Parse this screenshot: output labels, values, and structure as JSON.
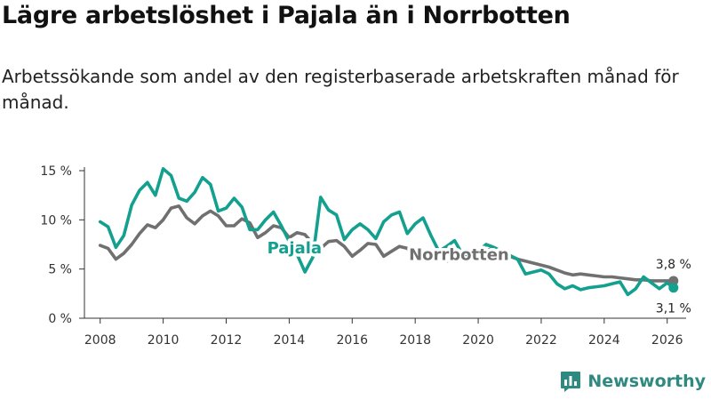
{
  "header": {
    "title": "Lägre arbetslöshet i Pajala än i Norrbotten",
    "subtitle": "Arbetssökande som andel av den registerbaserade arbetskraften månad för månad."
  },
  "brand": {
    "name": "Newsworthy",
    "color": "#2e8a80"
  },
  "chart_data": {
    "type": "line",
    "title": "Lägre arbetslöshet i Pajala än i Norrbotten",
    "subtitle": "Arbetssökande som andel av den registerbaserade arbetskraften månad för månad.",
    "xlabel": "",
    "ylabel": "",
    "xlim": [
      2007.5,
      2026.6
    ],
    "ylim": [
      0,
      15
    ],
    "x_ticks": [
      2008,
      2010,
      2012,
      2014,
      2016,
      2018,
      2020,
      2022,
      2024,
      2026
    ],
    "x_tick_labels": [
      "2008",
      "2010",
      "2012",
      "2014",
      "2016",
      "2018",
      "2020",
      "2022",
      "2024",
      "2026"
    ],
    "y_ticks": [
      0,
      5,
      10,
      15
    ],
    "y_tick_labels": [
      "0 %",
      "5 %",
      "10 %",
      "15 %"
    ],
    "grid": false,
    "series": [
      {
        "name": "Norrbotten",
        "color": "#707070",
        "label": "Norrbotten",
        "end_label": "3,8 %",
        "points": [
          [
            2008.0,
            7.4
          ],
          [
            2008.25,
            7.1
          ],
          [
            2008.5,
            6.0
          ],
          [
            2008.75,
            6.6
          ],
          [
            2009.0,
            7.5
          ],
          [
            2009.25,
            8.6
          ],
          [
            2009.5,
            9.5
          ],
          [
            2009.75,
            9.2
          ],
          [
            2010.0,
            10.0
          ],
          [
            2010.25,
            11.2
          ],
          [
            2010.5,
            11.4
          ],
          [
            2010.75,
            10.2
          ],
          [
            2011.0,
            9.6
          ],
          [
            2011.25,
            10.4
          ],
          [
            2011.5,
            10.9
          ],
          [
            2011.75,
            10.4
          ],
          [
            2012.0,
            9.4
          ],
          [
            2012.25,
            9.4
          ],
          [
            2012.5,
            10.1
          ],
          [
            2012.75,
            9.7
          ],
          [
            2013.0,
            8.2
          ],
          [
            2013.25,
            8.7
          ],
          [
            2013.5,
            9.4
          ],
          [
            2013.75,
            9.2
          ],
          [
            2014.0,
            8.2
          ],
          [
            2014.25,
            8.7
          ],
          [
            2014.5,
            8.5
          ],
          [
            2014.75,
            7.6
          ],
          [
            2015.0,
            7.1
          ],
          [
            2015.25,
            7.8
          ],
          [
            2015.5,
            7.9
          ],
          [
            2015.75,
            7.3
          ],
          [
            2016.0,
            6.3
          ],
          [
            2016.25,
            6.9
          ],
          [
            2016.5,
            7.6
          ],
          [
            2016.75,
            7.5
          ],
          [
            2017.0,
            6.3
          ],
          [
            2017.25,
            6.8
          ],
          [
            2017.5,
            7.3
          ],
          [
            2017.75,
            7.1
          ],
          [
            2018.0,
            6.1
          ],
          [
            2018.25,
            6.5
          ],
          [
            2018.5,
            6.9
          ],
          [
            2018.75,
            6.7
          ],
          [
            2019.0,
            5.8
          ],
          [
            2019.25,
            6.1
          ],
          [
            2019.5,
            6.4
          ],
          [
            2019.75,
            6.2
          ],
          [
            2020.0,
            6.4
          ],
          [
            2020.25,
            6.9
          ],
          [
            2020.5,
            7.1
          ],
          [
            2020.75,
            6.8
          ],
          [
            2021.0,
            6.3
          ],
          [
            2021.25,
            6.0
          ],
          [
            2021.5,
            5.8
          ],
          [
            2021.75,
            5.6
          ],
          [
            2022.0,
            5.4
          ],
          [
            2022.25,
            5.2
          ],
          [
            2022.5,
            4.9
          ],
          [
            2022.75,
            4.6
          ],
          [
            2023.0,
            4.4
          ],
          [
            2023.25,
            4.5
          ],
          [
            2023.5,
            4.4
          ],
          [
            2023.75,
            4.3
          ],
          [
            2024.0,
            4.2
          ],
          [
            2024.25,
            4.2
          ],
          [
            2024.5,
            4.1
          ],
          [
            2024.75,
            4.0
          ],
          [
            2025.0,
            3.9
          ],
          [
            2025.25,
            3.9
          ],
          [
            2025.5,
            3.8
          ],
          [
            2025.75,
            3.8
          ],
          [
            2026.0,
            3.8
          ],
          [
            2026.2,
            3.8
          ]
        ]
      },
      {
        "name": "Pajala",
        "color": "#13a08f",
        "label": "Pajala",
        "end_label": "3,1 %",
        "points": [
          [
            2008.0,
            9.8
          ],
          [
            2008.25,
            9.3
          ],
          [
            2008.5,
            7.2
          ],
          [
            2008.75,
            8.4
          ],
          [
            2009.0,
            11.5
          ],
          [
            2009.25,
            13.0
          ],
          [
            2009.5,
            13.8
          ],
          [
            2009.75,
            12.5
          ],
          [
            2010.0,
            15.2
          ],
          [
            2010.25,
            14.5
          ],
          [
            2010.5,
            12.2
          ],
          [
            2010.75,
            11.9
          ],
          [
            2011.0,
            12.8
          ],
          [
            2011.25,
            14.3
          ],
          [
            2011.5,
            13.6
          ],
          [
            2011.75,
            10.9
          ],
          [
            2012.0,
            11.2
          ],
          [
            2012.25,
            12.2
          ],
          [
            2012.5,
            11.3
          ],
          [
            2012.75,
            9.0
          ],
          [
            2013.0,
            9.0
          ],
          [
            2013.25,
            10.0
          ],
          [
            2013.5,
            10.8
          ],
          [
            2013.75,
            9.4
          ],
          [
            2014.0,
            7.8
          ],
          [
            2014.25,
            6.5
          ],
          [
            2014.5,
            4.7
          ],
          [
            2014.75,
            6.2
          ],
          [
            2015.0,
            12.3
          ],
          [
            2015.25,
            11.0
          ],
          [
            2015.5,
            10.5
          ],
          [
            2015.75,
            8.0
          ],
          [
            2016.0,
            9.0
          ],
          [
            2016.25,
            9.6
          ],
          [
            2016.5,
            9.0
          ],
          [
            2016.75,
            8.1
          ],
          [
            2017.0,
            9.8
          ],
          [
            2017.25,
            10.5
          ],
          [
            2017.5,
            10.8
          ],
          [
            2017.75,
            8.6
          ],
          [
            2018.0,
            9.6
          ],
          [
            2018.25,
            10.2
          ],
          [
            2018.5,
            8.4
          ],
          [
            2018.75,
            6.8
          ],
          [
            2019.0,
            7.3
          ],
          [
            2019.25,
            7.9
          ],
          [
            2019.5,
            6.5
          ],
          [
            2019.75,
            6.2
          ],
          [
            2020.0,
            6.8
          ],
          [
            2020.25,
            7.5
          ],
          [
            2020.5,
            7.2
          ],
          [
            2020.75,
            6.8
          ],
          [
            2021.0,
            6.4
          ],
          [
            2021.25,
            6.0
          ],
          [
            2021.5,
            4.5
          ],
          [
            2021.75,
            4.7
          ],
          [
            2022.0,
            4.9
          ],
          [
            2022.25,
            4.5
          ],
          [
            2022.5,
            3.5
          ],
          [
            2022.75,
            3.0
          ],
          [
            2023.0,
            3.3
          ],
          [
            2023.25,
            2.9
          ],
          [
            2023.5,
            3.1
          ],
          [
            2023.75,
            3.2
          ],
          [
            2024.0,
            3.3
          ],
          [
            2024.25,
            3.5
          ],
          [
            2024.5,
            3.7
          ],
          [
            2024.75,
            2.4
          ],
          [
            2025.0,
            3.0
          ],
          [
            2025.25,
            4.2
          ],
          [
            2025.5,
            3.6
          ],
          [
            2025.75,
            3.0
          ],
          [
            2026.0,
            3.6
          ],
          [
            2026.2,
            3.1
          ]
        ]
      }
    ],
    "annotations": [
      {
        "text": "Pajala",
        "series": "Pajala"
      },
      {
        "text": "Norrbotten",
        "series": "Norrbotten"
      }
    ]
  }
}
